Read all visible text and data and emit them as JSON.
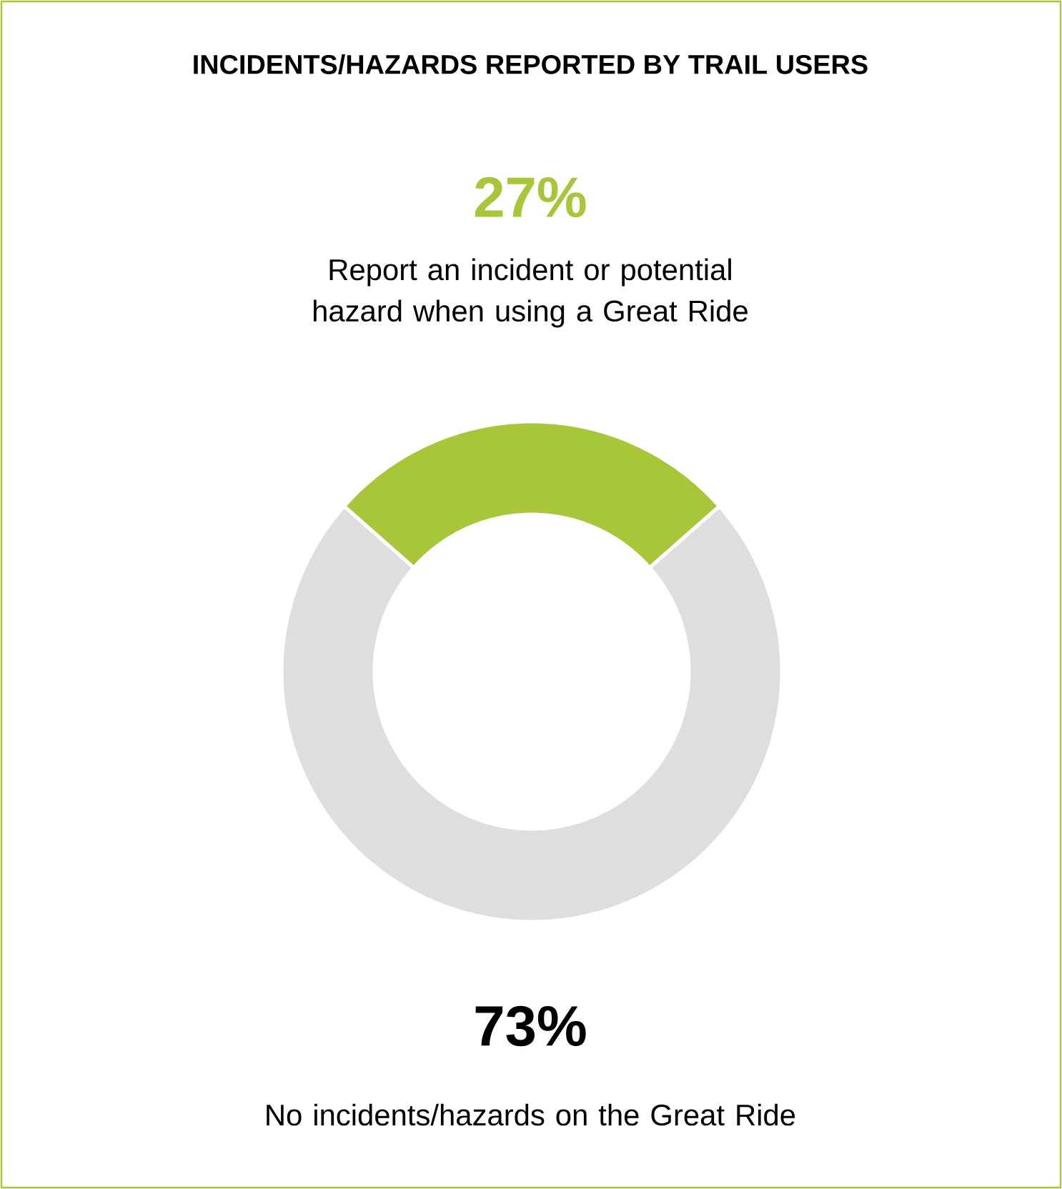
{
  "chart_data": {
    "type": "donut",
    "title": "INCIDENTS/HAZARDS REPORTED BY TRAIL USERS",
    "categories": [
      "Report an incident or potential hazard when using a Great Ride",
      "No incidents/hazards on the Great Ride"
    ],
    "values": [
      27,
      73
    ],
    "colors": [
      "#a8c63a",
      "#dedede"
    ],
    "value_labels": [
      "27%",
      "73%"
    ]
  }
}
